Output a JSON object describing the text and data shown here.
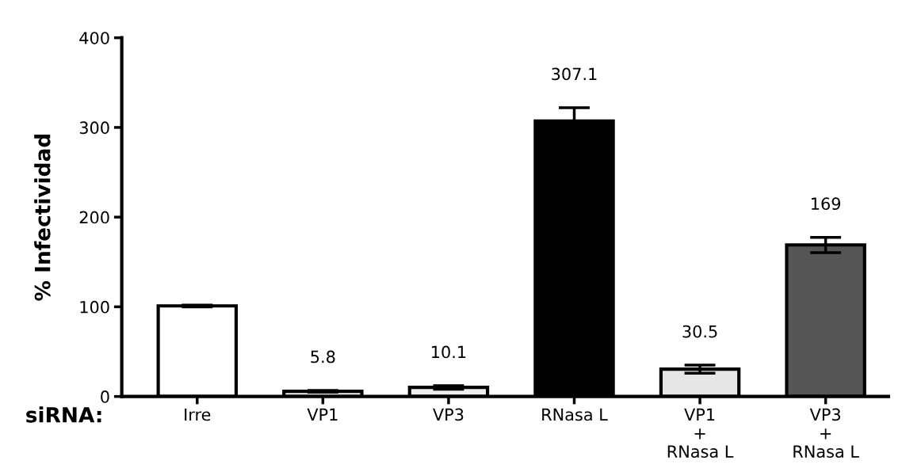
{
  "chart_data": {
    "type": "bar",
    "ylabel": "% Infectividad",
    "xlabel": "siRNA:",
    "categories": [
      "Irre",
      "VP1",
      "VP3",
      "RNasa L",
      "VP1\n+\nRNasa L",
      "VP3\n+\nRNasa L"
    ],
    "values": [
      101,
      5.8,
      10.1,
      307.1,
      30.5,
      169
    ],
    "errors": [
      1,
      1,
      2,
      15,
      4.5,
      8.5
    ],
    "value_labels": [
      null,
      "5.8",
      "10.1",
      "307.1",
      "30.5",
      "169"
    ],
    "colors": [
      "#ffffff",
      "#f2f2f2",
      "#eeeeee",
      "#000000",
      "#e6e6e6",
      "#555555"
    ],
    "ylim": [
      0,
      400
    ],
    "yticks": [
      0,
      100,
      200,
      300,
      400
    ],
    "grid": false,
    "legend": false
  }
}
